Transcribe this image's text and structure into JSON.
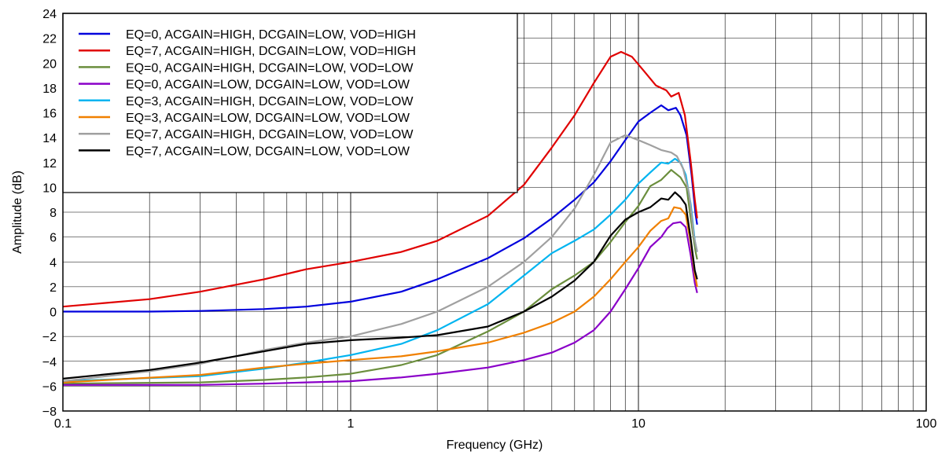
{
  "chart_data": {
    "type": "line",
    "xlabel": "Frequency (GHz)",
    "ylabel": "Amplitude (dB)",
    "xscale": "log",
    "xlim": [
      0.1,
      100
    ],
    "ylim": [
      -8,
      24
    ],
    "xticks": [
      0.1,
      1,
      10,
      100
    ],
    "xtick_labels": [
      "0.1",
      "1",
      "10",
      "100"
    ],
    "yticks": [
      -8,
      -6,
      -4,
      -2,
      0,
      2,
      4,
      6,
      8,
      10,
      12,
      14,
      16,
      18,
      20,
      22,
      24
    ],
    "ytick_labels": [
      "−8",
      "−6",
      "−4",
      "−2",
      "0",
      "2",
      "4",
      "6",
      "8",
      "10",
      "12",
      "14",
      "16",
      "18",
      "20",
      "22",
      "24"
    ],
    "grid": true,
    "legend_position": "top-left",
    "series": [
      {
        "name": "EQ=0, ACGAIN=HIGH, DCGAIN=LOW, VOD=HIGH",
        "color": "#0000dd",
        "points": [
          [
            0.1,
            0
          ],
          [
            0.2,
            0
          ],
          [
            0.3,
            0.05
          ],
          [
            0.5,
            0.2
          ],
          [
            0.7,
            0.4
          ],
          [
            1,
            0.8
          ],
          [
            1.5,
            1.6
          ],
          [
            2,
            2.6
          ],
          [
            3,
            4.3
          ],
          [
            4,
            5.9
          ],
          [
            5,
            7.5
          ],
          [
            6,
            9
          ],
          [
            7,
            10.4
          ],
          [
            8,
            12.1
          ],
          [
            9,
            13.8
          ],
          [
            10,
            15.3
          ],
          [
            11,
            16
          ],
          [
            12,
            16.6
          ],
          [
            12.7,
            16.2
          ],
          [
            13.5,
            16.4
          ],
          [
            14,
            15.8
          ],
          [
            14.7,
            14.2
          ],
          [
            15.3,
            11
          ],
          [
            15.8,
            7.8
          ],
          [
            16,
            7
          ]
        ]
      },
      {
        "name": "EQ=7, ACGAIN=HIGH, DCGAIN=LOW, VOD=HIGH",
        "color": "#e00000",
        "points": [
          [
            0.1,
            0.4
          ],
          [
            0.2,
            1
          ],
          [
            0.3,
            1.6
          ],
          [
            0.5,
            2.6
          ],
          [
            0.7,
            3.4
          ],
          [
            1,
            4
          ],
          [
            1.5,
            4.8
          ],
          [
            2,
            5.7
          ],
          [
            3,
            7.7
          ],
          [
            4,
            10.2
          ],
          [
            5,
            13.2
          ],
          [
            6,
            15.8
          ],
          [
            7,
            18.4
          ],
          [
            8,
            20.5
          ],
          [
            8.7,
            20.9
          ],
          [
            9.5,
            20.5
          ],
          [
            10.5,
            19.3
          ],
          [
            11.5,
            18.2
          ],
          [
            12.5,
            17.8
          ],
          [
            13,
            17.3
          ],
          [
            13.8,
            17.6
          ],
          [
            14.5,
            15.8
          ],
          [
            15.2,
            12
          ],
          [
            15.7,
            9
          ],
          [
            16,
            7.5
          ]
        ]
      },
      {
        "name": "EQ=0, ACGAIN=HIGH, DCGAIN=LOW, VOD=LOW",
        "color": "#6b8e3d",
        "points": [
          [
            0.1,
            -5.8
          ],
          [
            0.3,
            -5.7
          ],
          [
            0.5,
            -5.5
          ],
          [
            0.7,
            -5.3
          ],
          [
            1,
            -5
          ],
          [
            1.5,
            -4.3
          ],
          [
            2,
            -3.5
          ],
          [
            3,
            -1.6
          ],
          [
            4,
            0
          ],
          [
            5,
            1.8
          ],
          [
            6,
            2.9
          ],
          [
            7,
            4
          ],
          [
            8,
            5.6
          ],
          [
            9,
            7.2
          ],
          [
            10,
            8.5
          ],
          [
            11,
            10.1
          ],
          [
            12,
            10.6
          ],
          [
            13,
            11.4
          ],
          [
            14,
            10.8
          ],
          [
            14.7,
            10
          ],
          [
            15.3,
            7
          ],
          [
            15.8,
            4.8
          ],
          [
            16,
            4.2
          ]
        ]
      },
      {
        "name": "EQ=0, ACGAIN=LOW, DCGAIN=LOW, VOD=LOW",
        "color": "#8a00c8",
        "points": [
          [
            0.1,
            -5.9
          ],
          [
            0.3,
            -5.9
          ],
          [
            0.5,
            -5.8
          ],
          [
            0.7,
            -5.7
          ],
          [
            1,
            -5.6
          ],
          [
            1.5,
            -5.3
          ],
          [
            2,
            -5
          ],
          [
            3,
            -4.5
          ],
          [
            4,
            -3.9
          ],
          [
            5,
            -3.3
          ],
          [
            6,
            -2.5
          ],
          [
            7,
            -1.5
          ],
          [
            8,
            0
          ],
          [
            9,
            1.8
          ],
          [
            10,
            3.5
          ],
          [
            11,
            5.2
          ],
          [
            12,
            6
          ],
          [
            12.6,
            6.7
          ],
          [
            13.2,
            7.1
          ],
          [
            14,
            7.2
          ],
          [
            14.6,
            6.8
          ],
          [
            15.2,
            4.5
          ],
          [
            15.7,
            2.3
          ],
          [
            16,
            1.5
          ]
        ]
      },
      {
        "name": "EQ=3, ACGAIN=HIGH, DCGAIN=LOW, VOD=LOW",
        "color": "#00b4f0",
        "points": [
          [
            0.1,
            -5.6
          ],
          [
            0.3,
            -5.2
          ],
          [
            0.5,
            -4.6
          ],
          [
            0.7,
            -4.1
          ],
          [
            1,
            -3.5
          ],
          [
            1.5,
            -2.6
          ],
          [
            2,
            -1.5
          ],
          [
            3,
            0.6
          ],
          [
            4,
            2.9
          ],
          [
            5,
            4.7
          ],
          [
            6,
            5.7
          ],
          [
            7,
            6.6
          ],
          [
            8,
            7.8
          ],
          [
            9,
            9
          ],
          [
            10,
            10.3
          ],
          [
            11,
            11.2
          ],
          [
            12,
            12
          ],
          [
            12.7,
            11.9
          ],
          [
            13.4,
            12.3
          ],
          [
            14,
            12
          ],
          [
            14.6,
            11
          ],
          [
            15.2,
            8.6
          ],
          [
            15.7,
            5.7
          ],
          [
            16,
            4.8
          ]
        ]
      },
      {
        "name": "EQ=3, ACGAIN=LOW, DCGAIN=LOW, VOD=LOW",
        "color": "#f08000",
        "points": [
          [
            0.1,
            -5.7
          ],
          [
            0.3,
            -5.1
          ],
          [
            0.5,
            -4.5
          ],
          [
            0.7,
            -4.2
          ],
          [
            1,
            -3.9
          ],
          [
            1.5,
            -3.6
          ],
          [
            2,
            -3.2
          ],
          [
            3,
            -2.5
          ],
          [
            4,
            -1.7
          ],
          [
            5,
            -0.9
          ],
          [
            6,
            0
          ],
          [
            7,
            1.2
          ],
          [
            8,
            2.6
          ],
          [
            9,
            4
          ],
          [
            10,
            5.2
          ],
          [
            11,
            6.5
          ],
          [
            12,
            7.3
          ],
          [
            12.7,
            7.5
          ],
          [
            13.3,
            8.4
          ],
          [
            14,
            8.3
          ],
          [
            14.6,
            7.8
          ],
          [
            15.2,
            5.5
          ],
          [
            15.7,
            3
          ],
          [
            16,
            2
          ]
        ]
      },
      {
        "name": "EQ=7, ACGAIN=HIGH, DCGAIN=LOW, VOD=LOW",
        "color": "#a0a0a0",
        "points": [
          [
            0.1,
            -5.6
          ],
          [
            0.2,
            -4.8
          ],
          [
            0.3,
            -4.2
          ],
          [
            0.5,
            -3.1
          ],
          [
            0.7,
            -2.5
          ],
          [
            1,
            -2
          ],
          [
            1.5,
            -1
          ],
          [
            2,
            0
          ],
          [
            3,
            2
          ],
          [
            4,
            4
          ],
          [
            5,
            6
          ],
          [
            6,
            8.3
          ],
          [
            7,
            11
          ],
          [
            8,
            13.6
          ],
          [
            9,
            14.2
          ],
          [
            10,
            13.8
          ],
          [
            11,
            13.4
          ],
          [
            12,
            13
          ],
          [
            13,
            12.8
          ],
          [
            13.6,
            12.5
          ],
          [
            14.3,
            11.5
          ],
          [
            15,
            9.5
          ],
          [
            15.6,
            6
          ],
          [
            16,
            4.8
          ]
        ]
      },
      {
        "name": "EQ=7, ACGAIN=LOW, DCGAIN=LOW, VOD=LOW",
        "color": "#000000",
        "points": [
          [
            0.1,
            -5.4
          ],
          [
            0.2,
            -4.7
          ],
          [
            0.3,
            -4.1
          ],
          [
            0.5,
            -3.2
          ],
          [
            0.7,
            -2.6
          ],
          [
            1,
            -2.3
          ],
          [
            1.5,
            -2.1
          ],
          [
            2,
            -1.9
          ],
          [
            3,
            -1.2
          ],
          [
            4,
            0
          ],
          [
            5,
            1.2
          ],
          [
            6,
            2.5
          ],
          [
            7,
            4
          ],
          [
            8,
            6.1
          ],
          [
            9,
            7.4
          ],
          [
            10,
            8
          ],
          [
            11,
            8.4
          ],
          [
            12,
            9.1
          ],
          [
            12.7,
            9
          ],
          [
            13.4,
            9.6
          ],
          [
            14,
            9.2
          ],
          [
            14.6,
            8.6
          ],
          [
            15.2,
            5.8
          ],
          [
            15.7,
            3.3
          ],
          [
            16,
            2.6
          ]
        ]
      }
    ]
  }
}
